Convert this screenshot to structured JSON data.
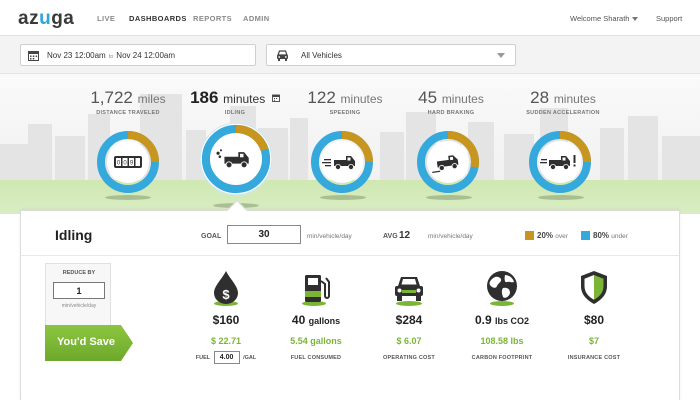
{
  "app": {
    "logo": "azuga"
  },
  "nav": {
    "items": [
      {
        "label": "LIVE",
        "active": false
      },
      {
        "label": "DASHBOARDS",
        "active": true
      },
      {
        "label": "REPORTS",
        "active": false
      },
      {
        "label": "ADMIN",
        "active": false
      }
    ],
    "user": "Welcome Sharath",
    "support": "Support"
  },
  "filters": {
    "date_from": "Nov 23 12:00am",
    "date_sep": "to",
    "date_to": "Nov 24 12:00am",
    "vehicles": "All Vehicles",
    "icons": [
      "calendar-icon",
      "car-icon",
      "chevron-down-icon"
    ]
  },
  "metrics": [
    {
      "value": "1,722",
      "unit": "miles",
      "label": "DISTANCE TRAVELED",
      "icon": "odometer-icon",
      "over_pct": 25,
      "active": false
    },
    {
      "value": "186",
      "unit": "minutes",
      "label": "IDLING",
      "icon": "truck-idling-icon",
      "over_pct": 20,
      "active": true
    },
    {
      "value": "122",
      "unit": "minutes",
      "label": "SPEEDING",
      "icon": "truck-speeding-icon",
      "over_pct": 25,
      "active": false
    },
    {
      "value": "45",
      "unit": "minutes",
      "label": "HARD BRAKING",
      "icon": "truck-braking-icon",
      "over_pct": 28,
      "active": false
    },
    {
      "value": "28",
      "unit": "minutes",
      "label": "SUDDEN ACCELERATION",
      "icon": "truck-acceleration-icon",
      "over_pct": 25,
      "active": false
    }
  ],
  "detail": {
    "title": "Idling",
    "goal_label": "GOAL",
    "goal_value": "30",
    "goal_unit": "min/vehicle/day",
    "avg_label": "AVG",
    "avg_value": "12",
    "avg_unit": "min/vehicle/day",
    "over": {
      "pct": "20%",
      "text": "over",
      "color": "#c8961e"
    },
    "under": {
      "pct": "80%",
      "text": "under",
      "color": "#35a8dc"
    }
  },
  "savings": {
    "reduce_label": "REDUCE BY",
    "reduce_value": "1",
    "reduce_unit": "min/vehicle/day",
    "banner": "You'd Save",
    "columns": [
      {
        "icon": "fuel-drop-dollar-icon",
        "value": "$160",
        "save": "$ 22.71",
        "label": "FUEL",
        "fuel_price": "4.00",
        "fuel_unit": "/GAL"
      },
      {
        "icon": "gas-pump-icon",
        "value": "40",
        "value_small": "gallons",
        "save": "5.54 gallons",
        "label": "FUEL CONSUMED"
      },
      {
        "icon": "car-front-icon",
        "value": "$284",
        "save": "$ 6.07",
        "label": "OPERATING COST"
      },
      {
        "icon": "globe-icon",
        "value": "0.9",
        "value_small": "lbs CO2",
        "save": "108.58 lbs",
        "label": "CARBON FOOTPRINT"
      },
      {
        "icon": "shield-icon",
        "value": "$80",
        "save": "$7",
        "label": "INSURANCE COST"
      }
    ]
  },
  "colors": {
    "accent_blue": "#35a8dc",
    "accent_gold": "#c8961e",
    "accent_green": "#7bb536",
    "dark": "#2f2f2f"
  }
}
